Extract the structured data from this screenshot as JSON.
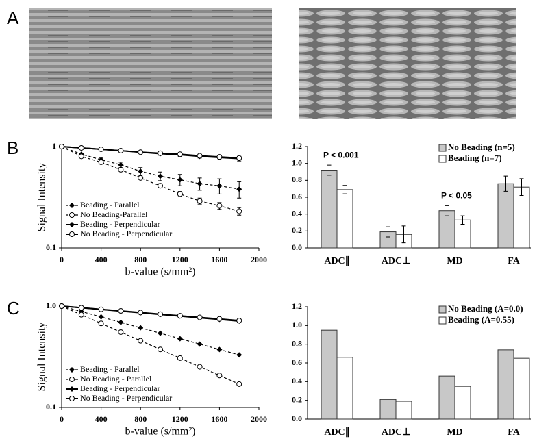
{
  "panel_labels": [
    "A",
    "B",
    "C"
  ],
  "chart_data": [
    {
      "type": "line",
      "log_y": true,
      "legend": "lower left",
      "x": [
        0,
        200,
        400,
        600,
        800,
        1000,
        1200,
        1400,
        1600,
        1800
      ],
      "xlim": [
        0,
        2000
      ],
      "xticks": [
        0,
        400,
        800,
        1200,
        1600,
        2000
      ],
      "ylim": [
        0.1,
        1
      ],
      "yticks": [
        0.1,
        1
      ],
      "xlabel": "b-value (s/mm²)",
      "ylabel": "Signal Intensity",
      "series": [
        {
          "name": "Beading - Parallel",
          "color": "#000000",
          "marker": "diamond",
          "linestyle": "dashed",
          "values": [
            1,
            0.84,
            0.74,
            0.66,
            0.57,
            0.51,
            0.47,
            0.43,
            0.41,
            0.38
          ],
          "errors": [
            0,
            0.02,
            0.03,
            0.04,
            0.05,
            0.05,
            0.06,
            0.06,
            0.07,
            0.07
          ]
        },
        {
          "name": "No Beading-Parallel",
          "color": "#000000",
          "marker": "circle",
          "linestyle": "dashed",
          "values": [
            1,
            0.8,
            0.7,
            0.59,
            0.49,
            0.41,
            0.34,
            0.29,
            0.26,
            0.23
          ],
          "errors": [
            0,
            0.01,
            0.01,
            0.01,
            0.01,
            0.02,
            0.02,
            0.02,
            0.02,
            0.02
          ]
        },
        {
          "name": "Beading - Perpendicular",
          "color": "#000000",
          "marker": "diamond",
          "linestyle": "solid",
          "values": [
            1,
            0.97,
            0.94,
            0.91,
            0.88,
            0.85,
            0.83,
            0.8,
            0.78,
            0.76
          ],
          "errors": [
            0,
            0.01,
            0.01,
            0.02,
            0.02,
            0.03,
            0.03,
            0.03,
            0.04,
            0.04
          ]
        },
        {
          "name": "No Beading - Perpendicular",
          "color": "#000000",
          "marker": "circle",
          "linestyle": "solid",
          "values": [
            1,
            0.97,
            0.94,
            0.91,
            0.88,
            0.86,
            0.84,
            0.81,
            0.79,
            0.77
          ],
          "errors": [
            0,
            0.01,
            0.01,
            0.01,
            0.02,
            0.02,
            0.02,
            0.03,
            0.03,
            0.03
          ]
        }
      ]
    },
    {
      "type": "bar",
      "legend": "upper right",
      "categories": [
        "ADC∥",
        "ADC⊥",
        "MD",
        "FA"
      ],
      "ylim": [
        0,
        1.2
      ],
      "yticks": [
        {
          "value": 0,
          "label": "0.0"
        },
        0.2,
        0.4,
        0.6,
        0.8,
        {
          "value": 1,
          "label": "1.0"
        },
        1.2
      ],
      "annotations": [
        "P < 0.001",
        "P < 0.05"
      ],
      "series": [
        {
          "name": "No Beading (n=5)",
          "color": "#c8c8c8",
          "values": [
            0.92,
            0.19,
            0.44,
            0.76
          ],
          "errors": [
            0.06,
            0.06,
            0.06,
            0.09
          ]
        },
        {
          "name": "Beading (n=7)",
          "color": "#ffffff",
          "values": [
            0.69,
            0.16,
            0.33,
            0.72
          ],
          "errors": [
            0.05,
            0.1,
            0.05,
            0.1
          ]
        }
      ]
    },
    {
      "type": "line",
      "log_y": true,
      "legend": "lower left",
      "x": [
        0,
        200,
        400,
        600,
        800,
        1000,
        1200,
        1400,
        1600,
        1800
      ],
      "xlim": [
        0,
        2000
      ],
      "xticks": [
        0,
        400,
        800,
        1200,
        1600,
        2000
      ],
      "ylim": [
        0.1,
        1
      ],
      "yticks": [
        0.1,
        {
          "value": 1,
          "label": "1.0"
        }
      ],
      "xlabel": "b-value (s/mm²)",
      "ylabel": "Signal Intensity",
      "series": [
        {
          "name": "Beading - Parallel",
          "color": "#000000",
          "marker": "diamond",
          "linestyle": "dashed",
          "values": [
            1,
            0.884,
            0.782,
            0.691,
            0.611,
            0.54,
            0.477,
            0.422,
            0.373,
            0.33
          ]
        },
        {
          "name": "No Beading - Parallel",
          "color": "#000000",
          "marker": "circle",
          "linestyle": "dashed",
          "values": [
            1,
            0.821,
            0.675,
            0.554,
            0.455,
            0.374,
            0.307,
            0.252,
            0.207,
            0.17
          ]
        },
        {
          "name": "Beading - Perpendicular",
          "color": "#000000",
          "marker": "diamond",
          "linestyle": "solid",
          "values": [
            1,
            0.963,
            0.927,
            0.892,
            0.859,
            0.827,
            0.796,
            0.766,
            0.738,
            0.71
          ]
        },
        {
          "name": "No Beading - Perpendicular",
          "color": "#000000",
          "marker": "circle",
          "linestyle": "solid",
          "values": [
            1,
            0.964,
            0.929,
            0.896,
            0.864,
            0.833,
            0.803,
            0.774,
            0.747,
            0.72
          ]
        }
      ]
    },
    {
      "type": "bar",
      "legend": "upper right",
      "categories": [
        "ADC∥",
        "ADC⊥",
        "MD",
        "FA"
      ],
      "ylim": [
        0,
        1.2
      ],
      "yticks": [
        {
          "value": 0,
          "label": "0.0"
        },
        0.2,
        0.4,
        0.6,
        0.8,
        {
          "value": 1,
          "label": "1.0"
        },
        1.2
      ],
      "series": [
        {
          "name": "No Beading (A=0.0)",
          "color": "#c8c8c8",
          "values": [
            0.95,
            0.21,
            0.46,
            0.74
          ]
        },
        {
          "name": "Beading (A=0.55)",
          "color": "#ffffff",
          "values": [
            0.66,
            0.19,
            0.35,
            0.65
          ]
        }
      ]
    }
  ]
}
